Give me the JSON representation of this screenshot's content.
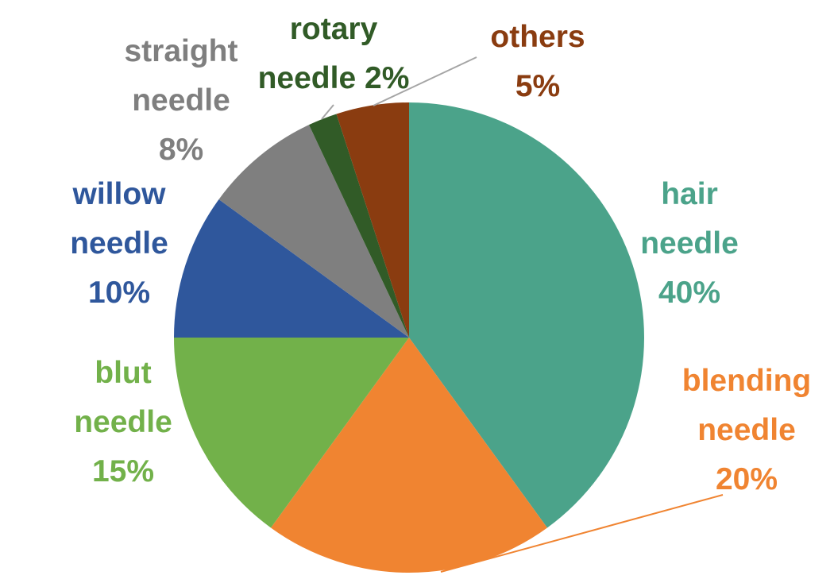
{
  "chart_data": {
    "type": "pie",
    "categories": [
      "hair needle",
      "blending needle",
      "blut needle",
      "willow needle",
      "straight needle",
      "rotary needle",
      "others"
    ],
    "values": [
      40,
      20,
      15,
      10,
      8,
      2,
      5
    ],
    "value_labels": [
      "40%",
      "20%",
      "15%",
      "10%",
      "8%",
      "2%",
      "5%"
    ],
    "colors": [
      "#4ba38a",
      "#f08431",
      "#72b14a",
      "#2f579c",
      "#7f7f7f",
      "#315b27",
      "#8a3c10"
    ]
  }
}
